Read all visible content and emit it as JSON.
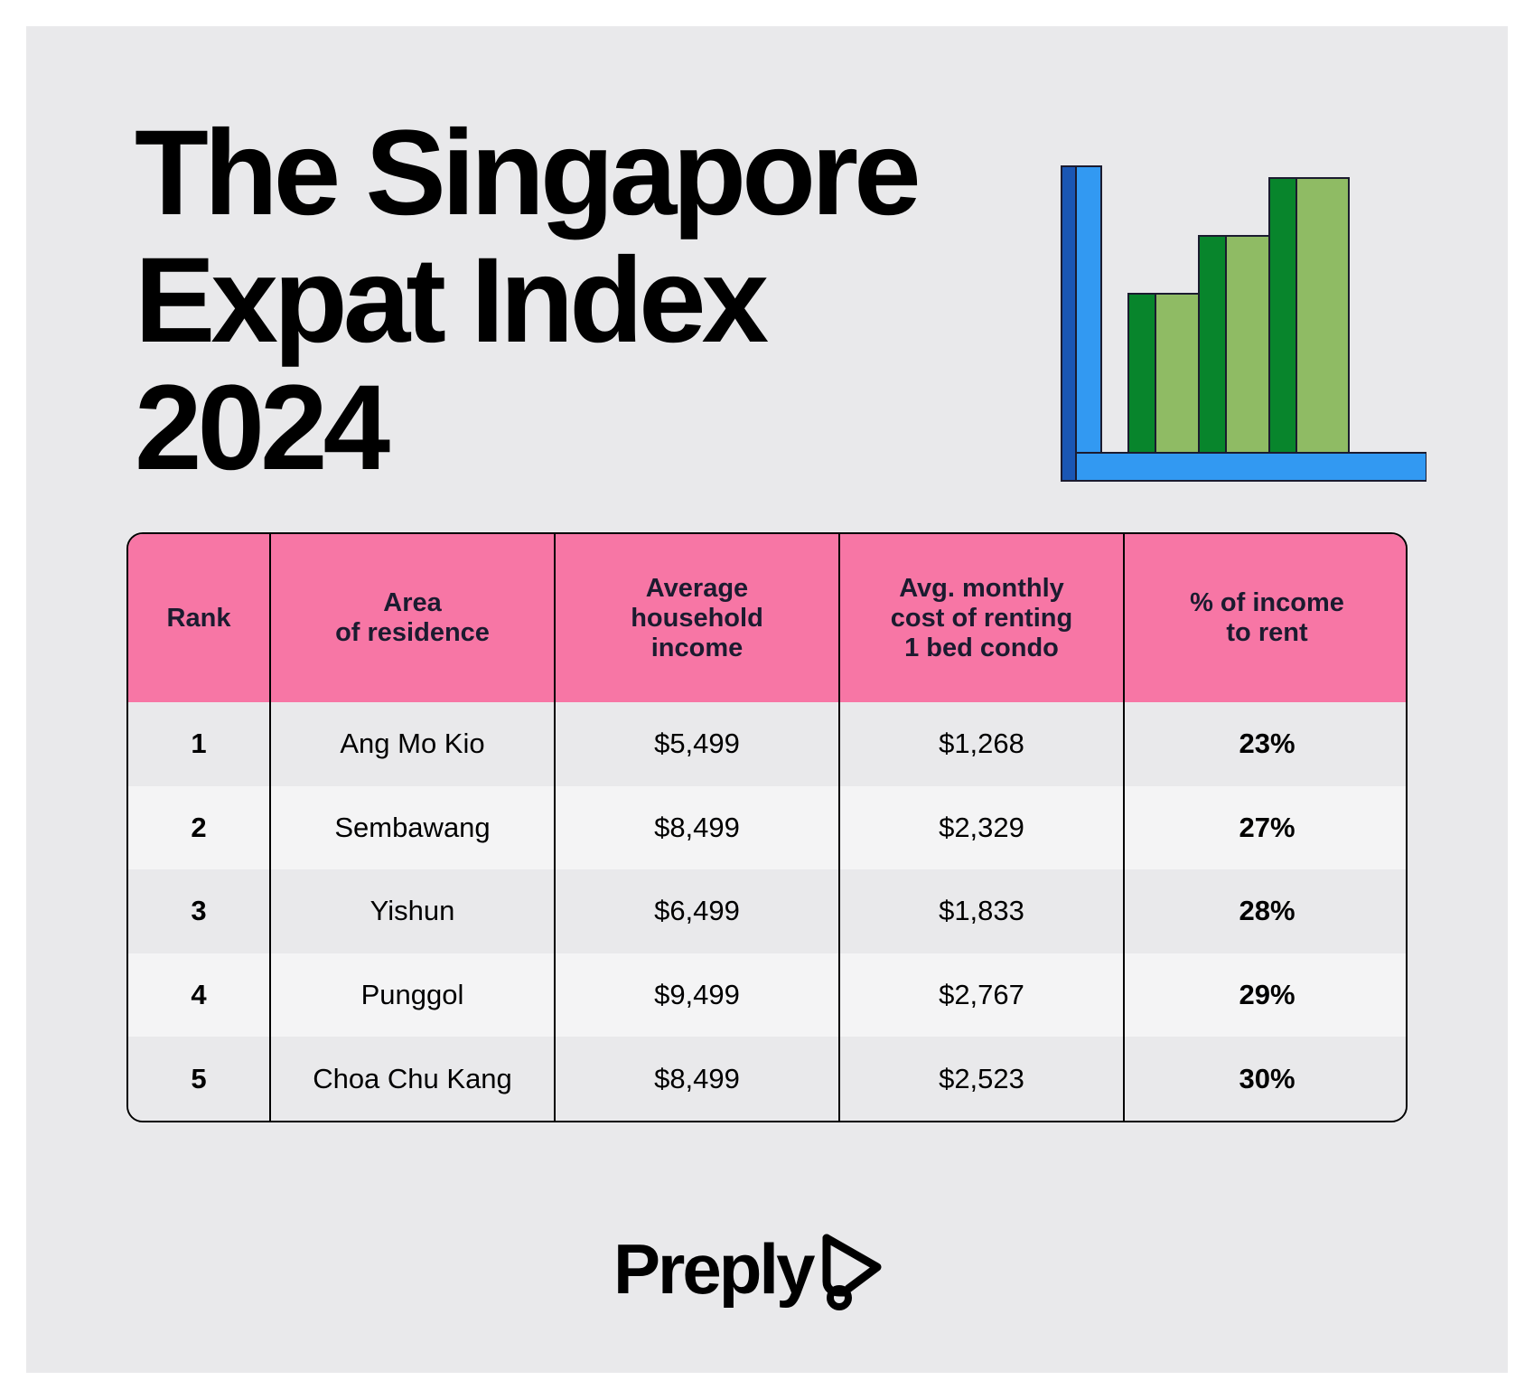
{
  "title_lines": [
    "The Singapore",
    "Expat Index",
    "2024"
  ],
  "brand": {
    "name": "Preply",
    "logo_icon": "preply-logo-icon"
  },
  "illustration": {
    "icon": "bar-chart-icon",
    "axis_color": "#3299f2",
    "axis_shadow_color": "#1a56b4",
    "bar_color": "#8fbb64",
    "bar_shadow_color": "#08852c",
    "bar_levels": [
      0.55,
      0.75,
      0.95
    ]
  },
  "colors": {
    "header_bg": "#f776a5",
    "row_bg_odd": "#e9e9eb",
    "row_bg_even": "#f4f4f5",
    "page_bg": "#e9e9eb"
  },
  "chart_data": {
    "type": "table",
    "columns": [
      "Rank",
      "Area\nof residence",
      "Average\nhousehold\nincome",
      "Avg. monthly\ncost of renting\n1 bed condo",
      "% of income\nto rent"
    ],
    "rows": [
      {
        "rank": "1",
        "area": "Ang Mo Kio",
        "income": "$5,499",
        "rent": "$1,268",
        "pct": "23%"
      },
      {
        "rank": "2",
        "area": "Sembawang",
        "income": "$8,499",
        "rent": "$2,329",
        "pct": "27%"
      },
      {
        "rank": "3",
        "area": "Yishun",
        "income": "$6,499",
        "rent": "$1,833",
        "pct": "28%"
      },
      {
        "rank": "4",
        "area": "Punggol",
        "income": "$9,499",
        "rent": "$2,767",
        "pct": "29%"
      },
      {
        "rank": "5",
        "area": "Choa Chu Kang",
        "income": "$8,499",
        "rent": "$2,523",
        "pct": "30%"
      }
    ]
  }
}
